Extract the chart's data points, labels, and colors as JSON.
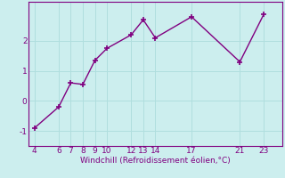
{
  "x": [
    4,
    6,
    7,
    8,
    9,
    10,
    12,
    13,
    14,
    17,
    21,
    23
  ],
  "y": [
    -0.9,
    -0.2,
    0.6,
    0.55,
    1.35,
    1.75,
    2.2,
    2.7,
    2.1,
    2.8,
    1.3,
    2.9
  ],
  "xlabel": "Windchill (Refroidissement éolien,°C)",
  "xlim": [
    3.5,
    24.5
  ],
  "ylim": [
    -1.5,
    3.3
  ],
  "xticks": [
    4,
    6,
    7,
    8,
    9,
    10,
    12,
    13,
    14,
    17,
    21,
    23
  ],
  "yticks": [
    -1,
    0,
    1,
    2
  ],
  "line_color": "#800080",
  "bg_color": "#cceeee",
  "grid_color": "#b0dede",
  "xlabel_color": "#800080",
  "tick_color": "#800080"
}
